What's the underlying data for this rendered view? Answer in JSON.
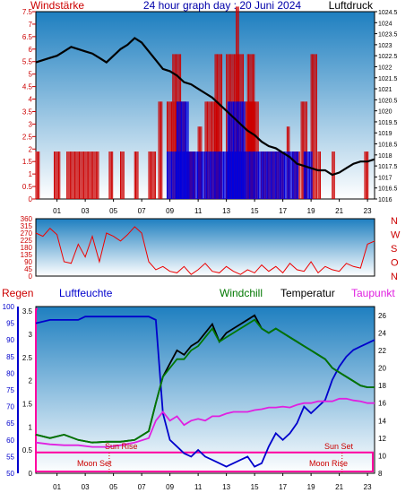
{
  "header": {
    "left_title": "Windstärke",
    "center_title": "24 hour graph day : 20 Juni 2024",
    "right_title": "Luftdruck"
  },
  "colors": {
    "bg_top": "#1e7fc0",
    "bg_bottom": "#ffffff",
    "windstarke": "#cc0000",
    "luftdruck": "#000000",
    "regen": "#cc0000",
    "luftfeuchte": "#0000cc",
    "windchill": "#007700",
    "temperatur": "#000000",
    "taupunkt": "#e020e0",
    "title": "#0000aa",
    "sun_moon_label": "#cc0000",
    "moon_line": "#ff00a0"
  },
  "chart_data": [
    {
      "type": "bar",
      "panel": "wind-pressure",
      "left_axis_label": "Windstärke",
      "right_axis_label": "Luftdruck",
      "x_ticks": [
        "01",
        "03",
        "05",
        "07",
        "09",
        "11",
        "13",
        "15",
        "17",
        "19",
        "21",
        "23"
      ],
      "xlim": [
        0,
        24
      ],
      "ylim_left": [
        0,
        7.5
      ],
      "left_ticks": [
        "0",
        "0.5",
        "1",
        "1.5",
        "2",
        "2.5",
        "3",
        "3.5",
        "4",
        "4.5",
        "5",
        "5.5",
        "6",
        "6.5",
        "7",
        "7.5"
      ],
      "ylim_right": [
        1016,
        1024.5
      ],
      "right_ticks": [
        "1016",
        "1016.5",
        "1017",
        "1017.5",
        "1018",
        "1018.5",
        "1019",
        "1019.5",
        "1020",
        "1020.5",
        "1021",
        "1021.5",
        "1022",
        "1022.5",
        "1023",
        "1023.5",
        "1024",
        "1024.5"
      ],
      "wind_gust_segments": [
        {
          "x": [
            0.0,
            0.3
          ],
          "value": 1.9
        },
        {
          "x": [
            1.3,
            1.7
          ],
          "value": 1.9
        },
        {
          "x": [
            2.2,
            4.5
          ],
          "value": 1.9
        },
        {
          "x": [
            5.2,
            5.5
          ],
          "value": 1.9
        },
        {
          "x": [
            6.0,
            6.3
          ],
          "value": 1.9
        },
        {
          "x": [
            7.0,
            7.3
          ],
          "value": 1.9
        },
        {
          "x": [
            8.0,
            8.5
          ],
          "value": 1.9
        },
        {
          "x": [
            8.7,
            9.0
          ],
          "value": 3.9
        },
        {
          "x": [
            9.3,
            10.6
          ],
          "value": 3.9
        },
        {
          "x": [
            9.7,
            10.3
          ],
          "value": 5.8
        },
        {
          "x": [
            10.7,
            11.3
          ],
          "value": 1.9
        },
        {
          "x": [
            11.5,
            11.8
          ],
          "value": 2.9
        },
        {
          "x": [
            12.0,
            13.0
          ],
          "value": 3.9
        },
        {
          "x": [
            12.7,
            13.2
          ],
          "value": 5.8
        },
        {
          "x": [
            13.5,
            14.7
          ],
          "value": 5.8
        },
        {
          "x": [
            14.2,
            14.4
          ],
          "value": 7.7
        },
        {
          "x": [
            14.8,
            15.8
          ],
          "value": 3.9
        },
        {
          "x": [
            15.0,
            15.5
          ],
          "value": 5.8
        },
        {
          "x": [
            16.0,
            17.6
          ],
          "value": 1.9
        },
        {
          "x": [
            17.8,
            18.0
          ],
          "value": 2.9
        },
        {
          "x": [
            18.2,
            18.7
          ],
          "value": 1.9
        },
        {
          "x": [
            18.8,
            19.2
          ],
          "value": 3.9
        },
        {
          "x": [
            19.5,
            19.9
          ],
          "value": 5.8
        },
        {
          "x": [
            20.0,
            20.2
          ],
          "value": 1.9
        },
        {
          "x": [
            21.0,
            21.2
          ],
          "value": 1.9
        },
        {
          "x": [
            23.3,
            23.6
          ],
          "value": 1.9
        }
      ],
      "wind_average_segments": [
        {
          "x": [
            9.3,
            18.6
          ],
          "value": 1.9
        },
        {
          "x": [
            10.0,
            10.8
          ],
          "value": 3.9
        },
        {
          "x": [
            13.6,
            14.8
          ],
          "value": 3.9
        },
        {
          "x": [
            19.0,
            19.6
          ],
          "value": 1.9
        }
      ],
      "pressure": {
        "x": [
          0,
          0.5,
          1,
          1.5,
          2,
          2.5,
          3,
          3.5,
          4,
          4.5,
          5,
          5.5,
          6,
          6.5,
          7,
          7.5,
          8,
          8.5,
          9,
          9.5,
          10,
          10.5,
          11,
          11.5,
          12,
          12.5,
          13,
          13.5,
          14,
          14.5,
          15,
          15.5,
          16,
          16.5,
          17,
          17.5,
          18,
          18.5,
          19,
          19.5,
          20,
          20.5,
          21,
          21.5,
          22,
          22.5,
          23,
          23.5,
          24
        ],
        "y": [
          1022.2,
          1022.3,
          1022.4,
          1022.5,
          1022.7,
          1022.9,
          1022.8,
          1022.7,
          1022.6,
          1022.4,
          1022.2,
          1022.5,
          1022.8,
          1023,
          1023.3,
          1023.1,
          1022.7,
          1022.3,
          1021.9,
          1021.8,
          1021.6,
          1021.3,
          1021.2,
          1021.0,
          1020.8,
          1020.6,
          1020.3,
          1020.0,
          1019.7,
          1019.4,
          1019.1,
          1018.9,
          1018.6,
          1018.4,
          1018.3,
          1018.1,
          1017.9,
          1017.6,
          1017.5,
          1017.4,
          1017.3,
          1017.3,
          1017.1,
          1017.2,
          1017.4,
          1017.6,
          1017.7,
          1017.7,
          1017.8
        ]
      }
    },
    {
      "type": "line",
      "panel": "wind-direction",
      "left_ticks": [
        "0",
        "45",
        "90",
        "135",
        "180",
        "225",
        "270",
        "315",
        "360"
      ],
      "ylim": [
        0,
        360
      ],
      "right_labels": [
        "N",
        "W",
        "S",
        "O",
        "N"
      ],
      "x": [
        0,
        0.5,
        1,
        1.5,
        2,
        2.5,
        3,
        3.5,
        4,
        4.5,
        5,
        5.5,
        6,
        6.5,
        7,
        7.5,
        8,
        8.5,
        9,
        9.5,
        10,
        10.5,
        11,
        11.5,
        12,
        12.5,
        13,
        13.5,
        14,
        14.5,
        15,
        15.5,
        16,
        16.5,
        17,
        17.5,
        18,
        18.5,
        19,
        19.5,
        20,
        20.5,
        21,
        21.5,
        22,
        22.5,
        23,
        23.5,
        24
      ],
      "y": [
        270,
        250,
        300,
        260,
        90,
        80,
        200,
        120,
        250,
        90,
        270,
        250,
        220,
        260,
        310,
        270,
        90,
        40,
        60,
        30,
        20,
        60,
        10,
        40,
        80,
        30,
        20,
        60,
        30,
        10,
        40,
        20,
        70,
        30,
        60,
        20,
        80,
        40,
        30,
        90,
        20,
        60,
        40,
        30,
        80,
        60,
        50,
        200,
        220
      ]
    },
    {
      "type": "line",
      "panel": "humidity-temperature",
      "left_label_1": "Regen",
      "left_label_2": "Luftfeuchte",
      "legend": [
        "Windchill",
        "Temperatur",
        "Taupunkt"
      ],
      "x_ticks": [
        "01",
        "03",
        "05",
        "07",
        "09",
        "11",
        "13",
        "15",
        "17",
        "19",
        "21",
        "23"
      ],
      "xlim": [
        0,
        24
      ],
      "regen_ticks": [
        "0",
        "0.5",
        "1",
        "1.5",
        "2",
        "2.5",
        "3",
        "3.5"
      ],
      "ylim_regen": [
        0,
        3.6
      ],
      "humidity_ticks": [
        "50",
        "55",
        "60",
        "65",
        "70",
        "75",
        "80",
        "85",
        "90",
        "95",
        "100"
      ],
      "ylim_humidity": [
        50,
        100
      ],
      "temperature_ticks": [
        "8",
        "10",
        "12",
        "14",
        "16",
        "18",
        "20",
        "22",
        "24",
        "26"
      ],
      "ylim_temperature": [
        8,
        27
      ],
      "series": [
        {
          "name": "Luftfeuchte",
          "axis": "humidity",
          "x": [
            0,
            1,
            2,
            3,
            3.5,
            4,
            5,
            6,
            7,
            8,
            8.5,
            9,
            9.5,
            10,
            10.5,
            11,
            11.5,
            12,
            12.5,
            13,
            13.5,
            14,
            14.5,
            15,
            15.5,
            16,
            16.5,
            17,
            17.5,
            18,
            18.5,
            19,
            19.5,
            20,
            20.5,
            21,
            21.5,
            22,
            22.5,
            23,
            23.5,
            24
          ],
          "y": [
            95,
            96,
            96,
            96,
            97,
            97,
            97,
            97,
            97,
            97,
            96,
            68,
            60,
            58,
            56,
            55,
            57,
            55,
            54,
            53,
            52,
            53,
            54,
            55,
            52,
            53,
            58,
            62,
            60,
            62,
            65,
            70,
            68,
            70,
            72,
            78,
            82,
            85,
            87,
            88,
            89,
            90
          ]
        },
        {
          "name": "Temperatur",
          "axis": "temperature",
          "x": [
            0,
            1,
            2,
            3,
            4,
            5,
            6,
            7,
            8,
            8.5,
            9,
            9.5,
            10,
            10.5,
            11,
            11.5,
            12,
            12.5,
            13,
            13.5,
            14,
            14.5,
            15,
            15.5,
            16,
            16.5,
            17,
            17.5,
            18,
            18.5,
            19,
            19.5,
            20,
            20.5,
            21,
            21.5,
            22,
            22.5,
            23,
            23.5,
            24
          ],
          "y": [
            12.4,
            12,
            12.4,
            11.8,
            11.5,
            11.6,
            11.6,
            11.8,
            12.8,
            16,
            19,
            20.5,
            22,
            21.5,
            22.5,
            23,
            24,
            25,
            23,
            24,
            24.5,
            25,
            25.5,
            26,
            24.5,
            24,
            24.5,
            24,
            23.5,
            23,
            22.5,
            22,
            21.5,
            21,
            20,
            19.5,
            19,
            18.5,
            18,
            17.8,
            17.8
          ]
        },
        {
          "name": "Windchill",
          "axis": "temperature",
          "x": [
            0,
            1,
            2,
            3,
            4,
            5,
            6,
            7,
            8,
            8.5,
            9,
            9.5,
            10,
            10.5,
            11,
            11.5,
            12,
            12.5,
            13,
            13.5,
            14,
            14.5,
            15,
            15.5,
            16,
            16.5,
            17,
            17.5,
            18,
            18.5,
            19,
            19.5,
            20,
            20.5,
            21,
            21.5,
            22,
            22.5,
            23,
            23.5,
            24
          ],
          "y": [
            12.4,
            12,
            12.4,
            11.8,
            11.5,
            11.6,
            11.6,
            11.8,
            12.8,
            16,
            19,
            20,
            21,
            21,
            22,
            22.5,
            23.5,
            24.5,
            23,
            23.5,
            24,
            24.5,
            25,
            25.5,
            24.5,
            24,
            24.5,
            24,
            23.5,
            23,
            22.5,
            22,
            21.5,
            21,
            20,
            19.5,
            19,
            18.5,
            18,
            17.8,
            17.8
          ]
        },
        {
          "name": "Taupunkt",
          "axis": "temperature",
          "x": [
            0,
            1,
            2,
            3,
            4,
            5,
            6,
            7,
            8,
            8.5,
            9,
            9.5,
            10,
            10.5,
            11,
            11.5,
            12,
            12.5,
            13,
            13.5,
            14,
            14.5,
            15,
            15.5,
            16,
            16.5,
            17,
            17.5,
            18,
            18.5,
            19,
            19.5,
            20,
            20.5,
            21,
            21.5,
            22,
            22.5,
            23,
            23.5,
            24
          ],
          "y": [
            11.5,
            11.3,
            11.2,
            11.2,
            11,
            11,
            11.2,
            11.5,
            12,
            14,
            15,
            14,
            14.5,
            13.5,
            14,
            14.2,
            14,
            14.5,
            14.5,
            14.8,
            15,
            15,
            15,
            15.2,
            15.3,
            15.5,
            15.5,
            15.6,
            15.5,
            15.8,
            16,
            16,
            16.2,
            16.2,
            16.2,
            16.5,
            16.5,
            16.3,
            16.2,
            16,
            16
          ]
        }
      ],
      "annotations": {
        "sun_rise": {
          "label": "Sun Rise",
          "x": 5.2
        },
        "sun_set": {
          "label": "Sun Set",
          "x": 21.7
        },
        "moon_set": {
          "label": "Moon Set",
          "x": 5.0
        },
        "moon_rise": {
          "label": "Moon Rise",
          "x": 21.3
        }
      }
    }
  ]
}
